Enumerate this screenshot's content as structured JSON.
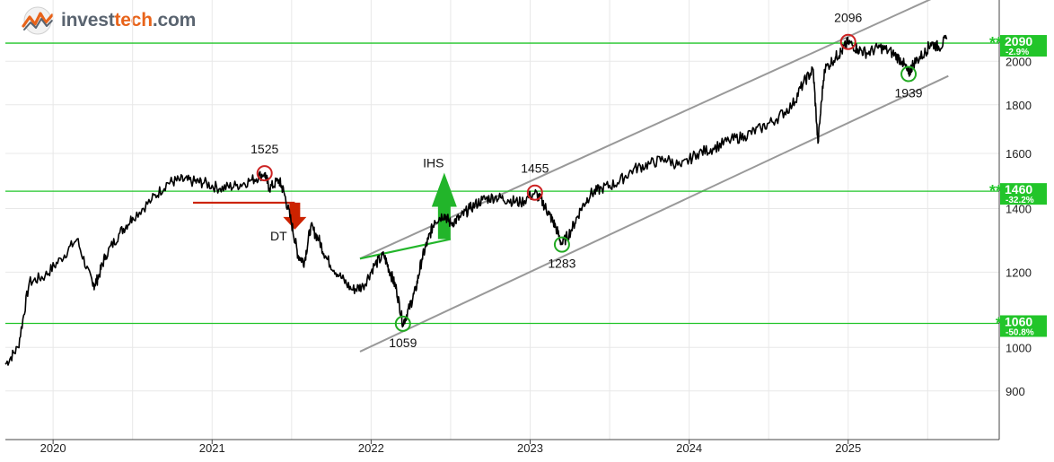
{
  "logo": {
    "part1": "invest",
    "part2": "tech",
    "part3": ".com"
  },
  "colors": {
    "price": "#000000",
    "support_resistance": "#22c52a",
    "trend_channel": "#999999",
    "top_circle": "#cc2222",
    "bottom_circle": "#22aa22",
    "dt_arrow": "#cc2200",
    "ihs_arrow": "#22b52a",
    "grid": "#e8e8e8",
    "logo_accent": "#e8631a"
  },
  "chart_data": {
    "type": "line",
    "y_scale": "log",
    "ylim": [
      800,
      2320
    ],
    "yticks": [
      900,
      1000,
      1200,
      1400,
      1600,
      1800,
      2000
    ],
    "ytick_labels": [
      "900",
      "1000",
      "1200",
      "1400",
      "1600",
      "1800",
      "2000"
    ],
    "x_labels": [
      "2020",
      "2021",
      "2022",
      "2023",
      "2024",
      "2025"
    ],
    "x_ticks": [
      2020.0,
      2021.0,
      2022.0,
      2023.0,
      2024.0,
      2025.0
    ],
    "xlim": [
      2019.7,
      2025.95
    ],
    "price_series": {
      "x": [
        2019.7,
        2019.78,
        2019.85,
        2019.95,
        2020.05,
        2020.15,
        2020.25,
        2020.28,
        2020.33,
        2020.42,
        2020.5,
        2020.62,
        2020.72,
        2020.8,
        2020.88,
        2020.95,
        2021.05,
        2021.15,
        2021.25,
        2021.33,
        2021.36,
        2021.42,
        2021.45,
        2021.5,
        2021.54,
        2021.58,
        2021.62,
        2021.67,
        2021.72,
        2021.8,
        2021.88,
        2021.95,
        2022.02,
        2022.08,
        2022.12,
        2022.16,
        2022.2,
        2022.24,
        2022.28,
        2022.32,
        2022.36,
        2022.4,
        2022.46,
        2022.5,
        2022.56,
        2022.62,
        2022.7,
        2022.78,
        2022.86,
        2022.94,
        2023.03,
        2023.08,
        2023.12,
        2023.16,
        2023.2,
        2023.26,
        2023.32,
        2023.38,
        2023.45,
        2023.55,
        2023.65,
        2023.75,
        2023.85,
        2023.95,
        2024.05,
        2024.15,
        2024.25,
        2024.35,
        2024.45,
        2024.55,
        2024.65,
        2024.72,
        2024.78,
        2024.81,
        2024.85,
        2024.92,
        2024.96,
        2025.0,
        2025.06,
        2025.12,
        2025.2,
        2025.28,
        2025.34,
        2025.38,
        2025.41,
        2025.48,
        2025.52,
        2025.57,
        2025.62
      ],
      "y": [
        960,
        1000,
        1170,
        1190,
        1240,
        1300,
        1160,
        1180,
        1250,
        1320,
        1370,
        1430,
        1490,
        1500,
        1495,
        1490,
        1470,
        1480,
        1500,
        1525,
        1470,
        1500,
        1460,
        1350,
        1250,
        1230,
        1340,
        1300,
        1240,
        1190,
        1150,
        1160,
        1220,
        1250,
        1200,
        1150,
        1059,
        1100,
        1150,
        1240,
        1300,
        1360,
        1380,
        1350,
        1370,
        1400,
        1430,
        1440,
        1430,
        1420,
        1455,
        1420,
        1380,
        1340,
        1283,
        1330,
        1400,
        1450,
        1470,
        1490,
        1540,
        1560,
        1580,
        1550,
        1600,
        1620,
        1650,
        1670,
        1700,
        1740,
        1800,
        1900,
        1960,
        1640,
        1960,
        2020,
        2050,
        2096,
        2060,
        2040,
        2070,
        2040,
        2000,
        1939,
        1990,
        2040,
        2090,
        2070,
        2110
      ]
    },
    "horizontal_levels": [
      {
        "value": 2090,
        "label": "2090",
        "change": "-2.9%",
        "stars": "**"
      },
      {
        "value": 1460,
        "label": "1460",
        "change": "-32.2%",
        "stars": "**"
      },
      {
        "value": 1060,
        "label": "1060",
        "change": "-50.8%",
        "stars": "*"
      }
    ],
    "trend_channel": {
      "upper": {
        "x": [
          2021.93,
          2025.63
        ],
        "y": [
          1240,
          2370
        ]
      },
      "lower": {
        "x": [
          2021.93,
          2025.63
        ],
        "y": [
          990,
          1930
        ]
      }
    },
    "annotations": [
      {
        "text": "1525",
        "x": 2021.33,
        "y": 1525,
        "kind": "top"
      },
      {
        "text": "1059",
        "x": 2022.2,
        "y": 1059,
        "kind": "bottom"
      },
      {
        "text": "1455",
        "x": 2023.03,
        "y": 1455,
        "kind": "top"
      },
      {
        "text": "1283",
        "x": 2023.2,
        "y": 1283,
        "kind": "bottom"
      },
      {
        "text": "2096",
        "x": 2025.0,
        "y": 2096,
        "kind": "top"
      },
      {
        "text": "1939",
        "x": 2025.38,
        "y": 1939,
        "kind": "bottom"
      }
    ],
    "patterns": [
      {
        "name": "DT",
        "direction": "down",
        "neckline": {
          "x": [
            2020.88,
            2021.52
          ],
          "y": [
            1420,
            1420
          ]
        },
        "target_x": 2021.52
      },
      {
        "name": "IHS",
        "direction": "up",
        "neckline": {
          "x": [
            2021.93,
            2022.5
          ],
          "y": [
            1240,
            1300
          ]
        },
        "target_x": 2022.46
      }
    ]
  }
}
